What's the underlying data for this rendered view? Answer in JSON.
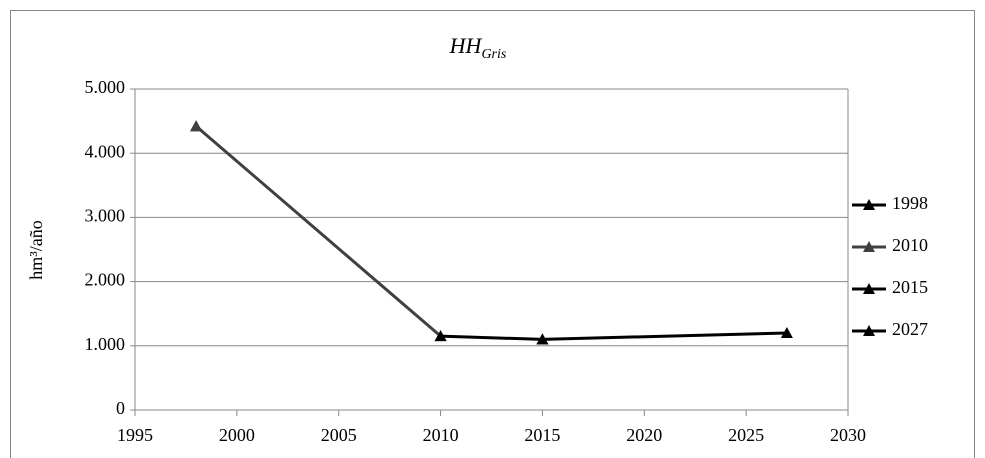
{
  "chart_data": {
    "type": "line",
    "title": "HH",
    "title_subscript": "Gris",
    "y_label": "hm³/año",
    "x": [
      1998,
      2010,
      2015,
      2027
    ],
    "series": [
      {
        "name": "1998",
        "color": "#000000",
        "values": [
          4420,
          null,
          null,
          null
        ]
      },
      {
        "name": "2010",
        "color": "#404040",
        "values": [
          4420,
          1150,
          null,
          null
        ]
      },
      {
        "name": "2015",
        "color": "#000000",
        "values": [
          null,
          1150,
          1100,
          null
        ]
      },
      {
        "name": "2027",
        "color": "#000000",
        "values": [
          null,
          null,
          1100,
          1200
        ]
      }
    ],
    "xlim": [
      1995,
      2030
    ],
    "xticks": [
      1995,
      2000,
      2005,
      2010,
      2015,
      2020,
      2025,
      2030
    ],
    "ylim": [
      0,
      5000
    ],
    "yticks": [
      0,
      {
        "value": 1000,
        "label": "1.000"
      },
      {
        "value": 2000,
        "label": "2.000"
      },
      {
        "value": 3000,
        "label": "3.000"
      },
      {
        "value": 4000,
        "label": "4.000"
      },
      {
        "value": 5000,
        "label": "5.000"
      }
    ],
    "grid": true,
    "legend": "right"
  }
}
